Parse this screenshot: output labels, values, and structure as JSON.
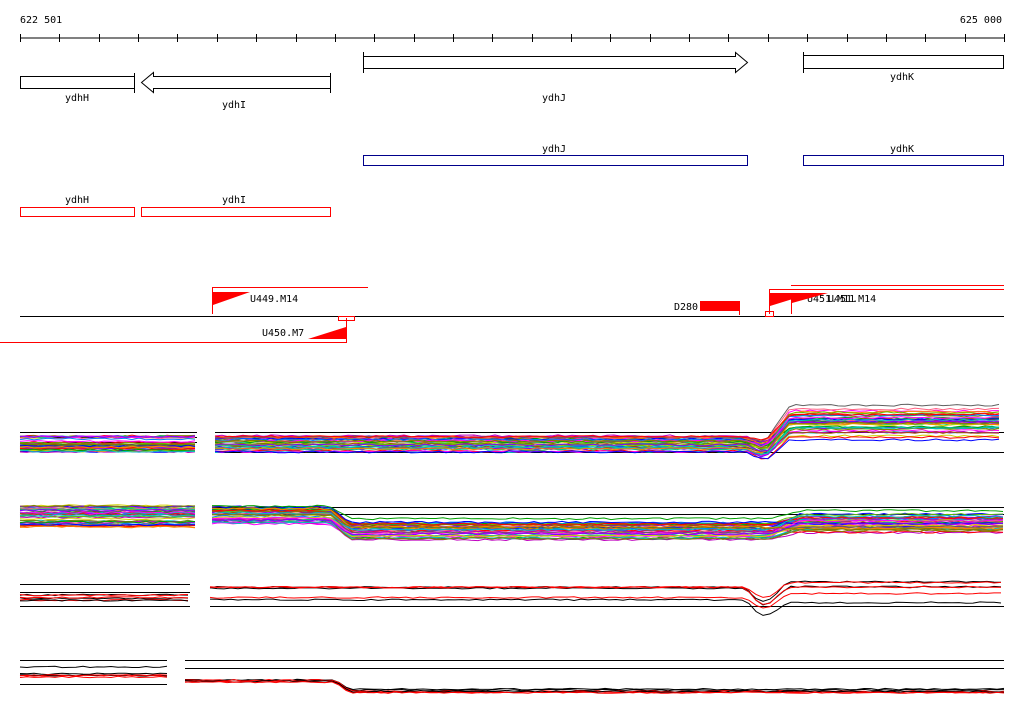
{
  "ruler": {
    "start_label": "622 501",
    "end_label": "625 000",
    "start": 622501,
    "end": 625000
  },
  "annotated_genes": [
    {
      "name": "ydhH",
      "start": 622501,
      "end": 622790,
      "strand": "none"
    },
    {
      "name": "ydhI",
      "start": 622808,
      "end": 623284,
      "strand": "-"
    },
    {
      "name": "ydhJ",
      "start": 623368,
      "end": 624345,
      "strand": "+"
    },
    {
      "name": "ydhK",
      "start": 624486,
      "end": 625000,
      "strand": "none"
    }
  ],
  "blue_genes": [
    {
      "name": "ydhJ",
      "start": 623368,
      "end": 624345
    },
    {
      "name": "ydhK",
      "start": 624486,
      "end": 625000
    }
  ],
  "red_genes": [
    {
      "name": "ydhH",
      "start": 622501,
      "end": 622790
    },
    {
      "name": "ydhI",
      "start": 622808,
      "end": 623284
    }
  ],
  "features": [
    {
      "label": "U449.M14",
      "strand": "+",
      "start": 622989,
      "end": 623434
    },
    {
      "label": "U450.M7",
      "strand": "-",
      "start": 622501,
      "end": 623382
    },
    {
      "label": "D280",
      "strand": "block",
      "start": 624275,
      "end": 624376
    },
    {
      "label": "U451.M11",
      "strand": "+",
      "start": 624456,
      "end": 625000
    },
    {
      "label": "U451.M14",
      "strand": "+",
      "start": 624510,
      "end": 625000
    }
  ],
  "colors": {
    "black": "#000000",
    "blue": "#00008b",
    "red": "#ff0000"
  }
}
